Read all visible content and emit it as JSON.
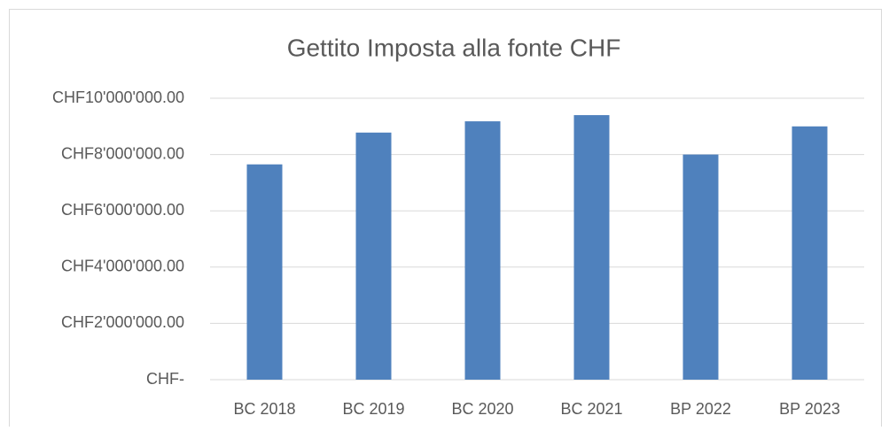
{
  "chart_data": {
    "type": "bar",
    "title": "Gettito Imposta alla fonte CHF",
    "categories": [
      "BC 2018",
      "BC 2019",
      "BC 2020",
      "BC 2021",
      "BP 2022",
      "BP 2023"
    ],
    "values": [
      7650000,
      8780000,
      9180000,
      9400000,
      8000000,
      9000000
    ],
    "color": "#4f81bd",
    "ylim": [
      0,
      10000000
    ],
    "yticks": [
      {
        "value": 0,
        "label": "CHF-"
      },
      {
        "value": 2000000,
        "label": "CHF2'000'000.00"
      },
      {
        "value": 4000000,
        "label": "CHF4'000'000.00"
      },
      {
        "value": 6000000,
        "label": "CHF6'000'000.00"
      },
      {
        "value": 8000000,
        "label": "CHF8'000'000.00"
      },
      {
        "value": 10000000,
        "label": "CHF10'000'000.00"
      }
    ],
    "grid": true
  }
}
